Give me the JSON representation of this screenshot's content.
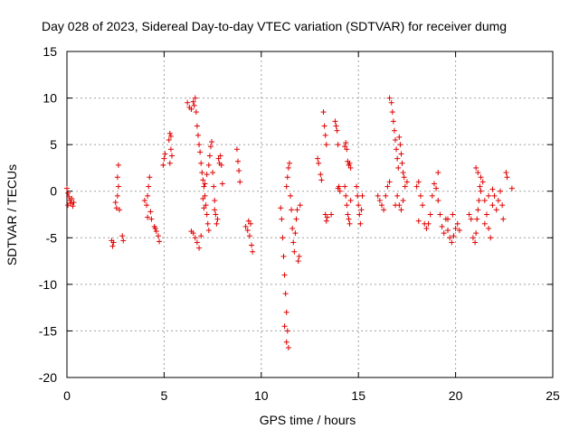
{
  "chart_data": {
    "type": "scatter",
    "title": "Day 028 of 2023, Sidereal Day-to-day VTEC variation (SDTVAR) for receiver dumg",
    "xlabel": "GPS time / hours",
    "ylabel": "SDTVAR / TECUs",
    "xlim": [
      0,
      25
    ],
    "ylim": [
      -20,
      15
    ],
    "xticks": [
      "0",
      "5",
      "10",
      "15",
      "20",
      "25"
    ],
    "yticks": [
      "15",
      "10",
      "5",
      "0",
      "-5",
      "-10",
      "-15",
      "-20"
    ],
    "grid": true,
    "marker": "+",
    "color": "#e00000",
    "series": [
      {
        "name": "SDTVAR",
        "points": [
          [
            0.0,
            0.3
          ],
          [
            0.05,
            -0.2
          ],
          [
            0.1,
            -0.6
          ],
          [
            0.15,
            -1.0
          ],
          [
            0.2,
            -1.3
          ],
          [
            0.25,
            -0.8
          ],
          [
            0.3,
            -1.6
          ],
          [
            0.35,
            -1.2
          ],
          [
            0.05,
            -1.5
          ],
          [
            2.3,
            -5.3
          ],
          [
            2.35,
            -5.9
          ],
          [
            2.4,
            -5.5
          ],
          [
            2.5,
            -1.2
          ],
          [
            2.55,
            -1.8
          ],
          [
            2.6,
            -0.5
          ],
          [
            2.65,
            0.5
          ],
          [
            2.6,
            1.5
          ],
          [
            2.65,
            2.8
          ],
          [
            2.7,
            -2.0
          ],
          [
            2.85,
            -4.8
          ],
          [
            2.9,
            -5.3
          ],
          [
            4.0,
            -1.0
          ],
          [
            4.1,
            -1.5
          ],
          [
            4.15,
            -0.5
          ],
          [
            4.2,
            0.5
          ],
          [
            4.25,
            1.5
          ],
          [
            4.3,
            -2.2
          ],
          [
            4.35,
            -3.0
          ],
          [
            4.15,
            -2.8
          ],
          [
            4.5,
            -3.8
          ],
          [
            4.6,
            -4.3
          ],
          [
            4.7,
            -4.8
          ],
          [
            4.75,
            -5.4
          ],
          [
            4.55,
            -4.0
          ],
          [
            4.95,
            2.8
          ],
          [
            5.0,
            3.5
          ],
          [
            5.05,
            4.0
          ],
          [
            5.25,
            5.5
          ],
          [
            5.3,
            6.2
          ],
          [
            5.35,
            4.5
          ],
          [
            5.4,
            3.8
          ],
          [
            5.3,
            3.0
          ],
          [
            5.35,
            5.9
          ],
          [
            6.2,
            9.5
          ],
          [
            6.3,
            9.0
          ],
          [
            6.4,
            8.8
          ],
          [
            6.5,
            9.6
          ],
          [
            6.55,
            9.2
          ],
          [
            6.6,
            10.0
          ],
          [
            6.65,
            8.5
          ],
          [
            6.7,
            7.0
          ],
          [
            6.75,
            6.0
          ],
          [
            6.8,
            5.0
          ],
          [
            6.85,
            4.2
          ],
          [
            6.9,
            3.0
          ],
          [
            6.95,
            2.0
          ],
          [
            7.0,
            1.2
          ],
          [
            7.05,
            0.5
          ],
          [
            7.1,
            -0.5
          ],
          [
            7.15,
            -1.5
          ],
          [
            7.2,
            -2.5
          ],
          [
            7.25,
            -3.5
          ],
          [
            7.3,
            -4.2
          ],
          [
            6.5,
            -4.5
          ],
          [
            6.6,
            -5.0
          ],
          [
            6.7,
            -5.5
          ],
          [
            6.8,
            -6.1
          ],
          [
            6.9,
            -4.8
          ],
          [
            6.4,
            -4.3
          ],
          [
            7.0,
            -0.8
          ],
          [
            7.05,
            -1.8
          ],
          [
            7.1,
            0.8
          ],
          [
            7.2,
            1.8
          ],
          [
            7.3,
            2.8
          ],
          [
            7.35,
            3.8
          ],
          [
            7.4,
            4.8
          ],
          [
            7.45,
            5.3
          ],
          [
            7.5,
            2.0
          ],
          [
            7.55,
            0.5
          ],
          [
            7.6,
            -1.0
          ],
          [
            7.65,
            -2.5
          ],
          [
            7.7,
            -3.5
          ],
          [
            7.75,
            -3.0
          ],
          [
            7.6,
            -2.0
          ],
          [
            7.8,
            3.5
          ],
          [
            7.85,
            3.0
          ],
          [
            7.9,
            3.8
          ],
          [
            7.95,
            2.8
          ],
          [
            8.0,
            0.8
          ],
          [
            8.75,
            4.5
          ],
          [
            8.8,
            3.2
          ],
          [
            8.85,
            2.2
          ],
          [
            8.9,
            1.0
          ],
          [
            9.2,
            -3.8
          ],
          [
            9.3,
            -4.2
          ],
          [
            9.4,
            -4.8
          ],
          [
            9.45,
            -3.5
          ],
          [
            9.5,
            -5.8
          ],
          [
            9.55,
            -6.5
          ],
          [
            9.35,
            -3.2
          ],
          [
            11.0,
            -1.8
          ],
          [
            11.05,
            -3.0
          ],
          [
            11.1,
            -5.0
          ],
          [
            11.15,
            -7.0
          ],
          [
            11.2,
            -9.0
          ],
          [
            11.25,
            -11.0
          ],
          [
            11.3,
            -13.0
          ],
          [
            11.35,
            -15.0
          ],
          [
            11.4,
            -16.8
          ],
          [
            11.3,
            -16.2
          ],
          [
            11.2,
            -14.5
          ],
          [
            11.3,
            0.5
          ],
          [
            11.35,
            1.5
          ],
          [
            11.4,
            2.5
          ],
          [
            11.45,
            3.0
          ],
          [
            11.5,
            -0.5
          ],
          [
            11.55,
            -2.0
          ],
          [
            11.6,
            -4.0
          ],
          [
            11.65,
            -5.5
          ],
          [
            11.7,
            -6.5
          ],
          [
            11.75,
            -4.5
          ],
          [
            11.8,
            -3.0
          ],
          [
            11.85,
            -2.0
          ],
          [
            11.9,
            -7.5
          ],
          [
            11.95,
            -7.0
          ],
          [
            12.0,
            -1.5
          ],
          [
            12.9,
            3.5
          ],
          [
            12.95,
            3.0
          ],
          [
            13.05,
            1.8
          ],
          [
            13.1,
            1.2
          ],
          [
            13.2,
            8.5
          ],
          [
            13.25,
            7.0
          ],
          [
            13.3,
            6.0
          ],
          [
            13.35,
            5.0
          ],
          [
            13.3,
            -2.5
          ],
          [
            13.35,
            -3.2
          ],
          [
            13.4,
            -2.8
          ],
          [
            13.6,
            -2.5
          ],
          [
            13.8,
            7.5
          ],
          [
            13.85,
            7.0
          ],
          [
            13.9,
            6.5
          ],
          [
            13.95,
            5.0
          ],
          [
            14.0,
            0.5
          ],
          [
            14.05,
            0.0
          ],
          [
            13.95,
            0.3
          ],
          [
            14.3,
            4.8
          ],
          [
            14.35,
            5.2
          ],
          [
            14.4,
            4.5
          ],
          [
            14.45,
            3.2
          ],
          [
            14.5,
            2.8
          ],
          [
            14.55,
            3.0
          ],
          [
            14.6,
            2.5
          ],
          [
            14.3,
            0.5
          ],
          [
            14.35,
            -0.5
          ],
          [
            14.4,
            -1.5
          ],
          [
            14.45,
            -2.5
          ],
          [
            14.5,
            -3.0
          ],
          [
            14.55,
            -3.5
          ],
          [
            14.6,
            -1.0
          ],
          [
            14.9,
            0.5
          ],
          [
            14.95,
            -0.5
          ],
          [
            15.0,
            -1.5
          ],
          [
            15.05,
            -2.5
          ],
          [
            15.1,
            -3.5
          ],
          [
            15.15,
            -2.0
          ],
          [
            15.2,
            -0.5
          ],
          [
            16.0,
            -0.5
          ],
          [
            16.1,
            -1.0
          ],
          [
            16.2,
            -1.5
          ],
          [
            16.3,
            -2.0
          ],
          [
            16.4,
            -0.5
          ],
          [
            16.5,
            0.5
          ],
          [
            16.6,
            1.0
          ],
          [
            16.6,
            10.0
          ],
          [
            16.7,
            9.5
          ],
          [
            16.75,
            8.5
          ],
          [
            16.8,
            7.5
          ],
          [
            16.85,
            6.5
          ],
          [
            16.9,
            5.5
          ],
          [
            16.95,
            4.5
          ],
          [
            17.0,
            3.5
          ],
          [
            17.05,
            2.5
          ],
          [
            17.1,
            5.8
          ],
          [
            17.15,
            5.0
          ],
          [
            17.2,
            4.0
          ],
          [
            17.25,
            3.0
          ],
          [
            17.3,
            2.0
          ],
          [
            17.35,
            1.5
          ],
          [
            17.4,
            0.5
          ],
          [
            17.5,
            1.0
          ],
          [
            17.1,
            -1.5
          ],
          [
            17.2,
            -2.0
          ],
          [
            17.3,
            -1.0
          ],
          [
            17.0,
            -0.5
          ],
          [
            16.9,
            -1.5
          ],
          [
            18.0,
            0.5
          ],
          [
            18.1,
            1.0
          ],
          [
            18.2,
            -0.5
          ],
          [
            18.3,
            -1.5
          ],
          [
            18.1,
            -3.2
          ],
          [
            18.4,
            -3.5
          ],
          [
            18.5,
            -4.0
          ],
          [
            18.6,
            -3.5
          ],
          [
            18.7,
            -2.5
          ],
          [
            18.8,
            -0.5
          ],
          [
            18.9,
            0.8
          ],
          [
            19.0,
            0.3
          ],
          [
            19.1,
            -1.0
          ],
          [
            19.2,
            -2.5
          ],
          [
            19.3,
            -3.8
          ],
          [
            19.4,
            -4.5
          ],
          [
            19.1,
            2.0
          ],
          [
            19.5,
            -3.0
          ],
          [
            19.6,
            -4.2
          ],
          [
            19.7,
            -5.0
          ],
          [
            19.8,
            -5.5
          ],
          [
            19.9,
            -4.8
          ],
          [
            20.0,
            -4.0
          ],
          [
            20.1,
            -3.5
          ],
          [
            20.2,
            -4.2
          ],
          [
            19.85,
            -2.5
          ],
          [
            19.6,
            -3.0
          ],
          [
            20.7,
            -2.5
          ],
          [
            20.8,
            -3.0
          ],
          [
            20.9,
            -5.0
          ],
          [
            21.0,
            -5.5
          ],
          [
            21.05,
            -4.5
          ],
          [
            21.1,
            -3.0
          ],
          [
            21.15,
            -2.0
          ],
          [
            21.2,
            -1.0
          ],
          [
            21.25,
            0.5
          ],
          [
            21.3,
            1.5
          ],
          [
            21.05,
            2.5
          ],
          [
            21.15,
            2.0
          ],
          [
            21.4,
            1.0
          ],
          [
            21.5,
            -1.0
          ],
          [
            21.6,
            -2.5
          ],
          [
            21.7,
            -4.0
          ],
          [
            21.8,
            -5.0
          ],
          [
            21.5,
            -3.5
          ],
          [
            21.9,
            -1.5
          ],
          [
            22.0,
            -0.5
          ],
          [
            22.1,
            -2.0
          ],
          [
            22.2,
            -1.0
          ],
          [
            22.3,
            0.0
          ],
          [
            22.4,
            -1.5
          ],
          [
            22.45,
            -3.0
          ],
          [
            21.3,
            0.0
          ],
          [
            21.7,
            -0.5
          ],
          [
            21.9,
            0.2
          ],
          [
            22.6,
            2.0
          ],
          [
            22.65,
            1.5
          ],
          [
            22.9,
            0.3
          ]
        ]
      }
    ]
  }
}
